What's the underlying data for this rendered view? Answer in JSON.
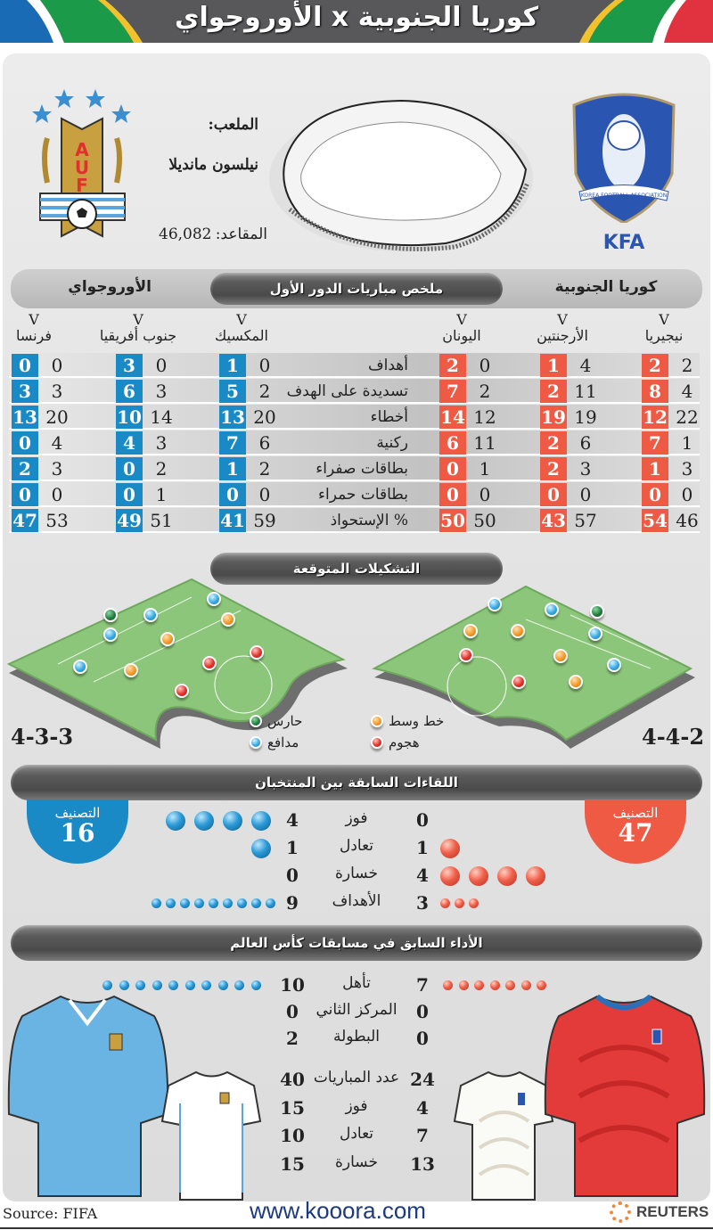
{
  "header": {
    "title": "كوريا الجنوبية x الأوروجواي",
    "colors": {
      "bar": "#58585a",
      "blue": "#1a6bb5",
      "green": "#1b9a4a",
      "yellow": "#f2c12e",
      "red": "#e0333f"
    }
  },
  "venue": {
    "stadium_label": "الملعب:",
    "stadium_name": "نيلسون مانديلا",
    "seats_label": "المقاعد:",
    "seats_value": "46,082"
  },
  "teams": {
    "left": {
      "name": "الأوروجواي",
      "crest_text": "AUF",
      "color": "#1a8ac6"
    },
    "right": {
      "name": "كوريا الجنوبية",
      "crest_text": "KFA",
      "crest_ribbon": "KOREA FOOTBALL ASSOCIATION",
      "color": "#ee5a44"
    }
  },
  "group_summary": {
    "title": "ملخص مباريات الدور الأول",
    "vs_mark": "V",
    "stat_labels": [
      "أهداف",
      "تسديدة على الهدف",
      "أخطاء",
      "ركنية",
      "بطاقات صفراء",
      "بطاقات حمراء",
      "% الإستحواذ"
    ],
    "korea_matches": [
      {
        "opponent": "نيجيريا",
        "team": [
          2,
          8,
          12,
          7,
          1,
          0,
          54
        ],
        "opp": [
          2,
          4,
          22,
          1,
          3,
          0,
          46
        ]
      },
      {
        "opponent": "الأرجنتين",
        "team": [
          1,
          2,
          19,
          2,
          2,
          0,
          43
        ],
        "opp": [
          4,
          11,
          19,
          6,
          3,
          0,
          57
        ]
      },
      {
        "opponent": "اليونان",
        "team": [
          2,
          7,
          14,
          6,
          0,
          0,
          50
        ],
        "opp": [
          0,
          2,
          12,
          11,
          1,
          0,
          50
        ]
      }
    ],
    "uruguay_matches": [
      {
        "opponent": "المكسيك",
        "team": [
          1,
          5,
          13,
          7,
          1,
          0,
          41
        ],
        "opp": [
          0,
          2,
          20,
          6,
          2,
          0,
          59
        ]
      },
      {
        "opponent": "جنوب أفريقيا",
        "team": [
          3,
          6,
          10,
          4,
          0,
          0,
          49
        ],
        "opp": [
          0,
          3,
          14,
          3,
          2,
          1,
          51
        ]
      },
      {
        "opponent": "فرنسا",
        "team": [
          0,
          3,
          13,
          0,
          2,
          0,
          47
        ],
        "opp": [
          0,
          3,
          20,
          4,
          3,
          0,
          53
        ]
      }
    ]
  },
  "formations": {
    "title": "التشكيلات المتوقعة",
    "left_formation": "4-3-3",
    "right_formation": "4-4-2",
    "legend": [
      {
        "label": "حارس",
        "role": "gk",
        "color": "#1b7a3a"
      },
      {
        "label": "مدافع",
        "role": "df",
        "color": "#35aae6"
      },
      {
        "label": "خط وسط",
        "role": "mf",
        "color": "#f39a2a"
      },
      {
        "label": "هجوم",
        "role": "fw",
        "color": "#e2332a"
      }
    ]
  },
  "head_to_head": {
    "title": "اللقاءات السابقة بين المنتخبان",
    "rank_label": "التصنيف",
    "uruguay_rank": "16",
    "korea_rank": "47",
    "rows": [
      {
        "label": "فوز",
        "uruguay": "4",
        "korea": "0"
      },
      {
        "label": "تعادل",
        "uruguay": "1",
        "korea": "1"
      },
      {
        "label": "خسارة",
        "uruguay": "0",
        "korea": "4"
      },
      {
        "label": "الأهداف",
        "uruguay": "9",
        "korea": "3"
      }
    ]
  },
  "world_cup_history": {
    "title": "الأداء السابق في مسابقات كأس العالم",
    "rows_top": [
      {
        "label": "تأهل",
        "uruguay": "10",
        "korea": "7"
      },
      {
        "label": "المركز الثاني",
        "uruguay": "0",
        "korea": "0"
      },
      {
        "label": "البطولة",
        "uruguay": "2",
        "korea": "0"
      }
    ],
    "rows_bottom": [
      {
        "label": "عدد المباريات",
        "uruguay": "40",
        "korea": "24"
      },
      {
        "label": "فوز",
        "uruguay": "15",
        "korea": "4"
      },
      {
        "label": "تعادل",
        "uruguay": "10",
        "korea": "7"
      },
      {
        "label": "خسارة",
        "uruguay": "15",
        "korea": "13"
      }
    ]
  },
  "footer": {
    "source": "Source: FIFA",
    "website": "www.kooora.com",
    "agency": "REUTERS"
  }
}
